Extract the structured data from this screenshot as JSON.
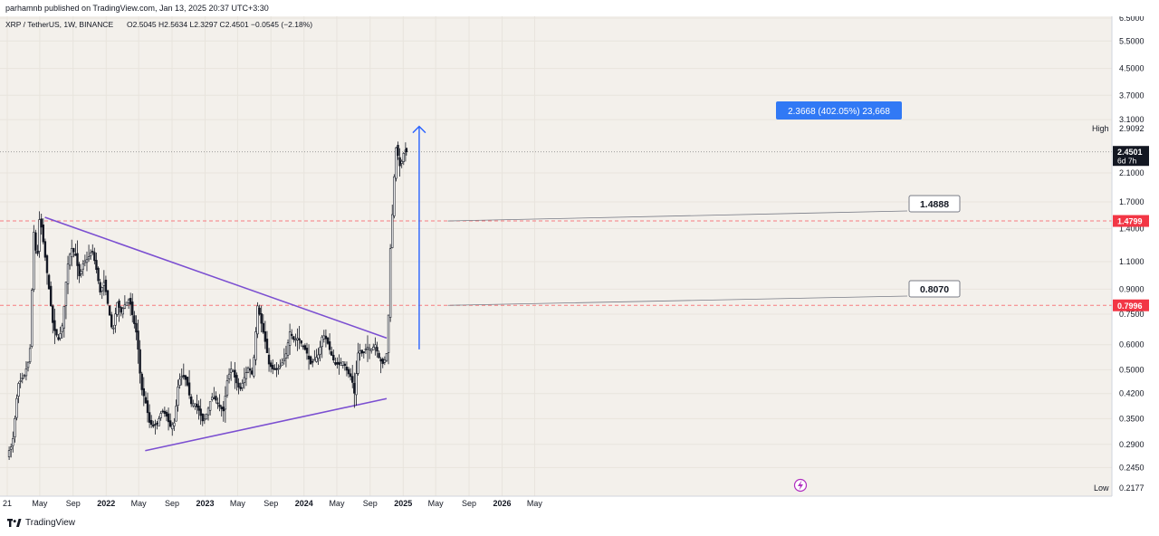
{
  "header": {
    "published": "parhamnb published on TradingView.com, Jan 13, 2025 20:37 UTC+3:30"
  },
  "footer": {
    "brand": "TradingView",
    "logo_icon": "tradingview-logo-icon"
  },
  "colors": {
    "background": "#f3f0eb",
    "grid": "#e8e4dd",
    "candle": "#131722",
    "trendline": "#7b4fd1",
    "support_line": "#f77c80",
    "support_badge": "#f23645",
    "arrow": "#2962ff",
    "measure_box": "#3179f5",
    "price_badge": "#131722"
  },
  "chart_data": {
    "type": "candlestick",
    "title": "XRP / TetherUS, 1W, BINANCE",
    "ohlc_readout": "O2.5045  H2.5634  L2.3297  C2.4501  −0.0545 (−2.18%)",
    "y_scale": "log",
    "ylim": [
      0.2177,
      6.5
    ],
    "y_ticks": [
      6.5,
      5.5,
      4.5,
      3.7,
      3.1,
      2.1,
      1.7,
      1.4,
      1.1,
      0.9,
      0.75,
      0.6,
      0.5,
      0.42,
      0.35,
      0.29,
      0.245
    ],
    "y_tick_labels": [
      "6.5000",
      "5.5000",
      "4.5000",
      "3.7000",
      "3.1000",
      "2.1000",
      "1.7000",
      "1.4000",
      "1.1000",
      "0.9000",
      "0.7500",
      "0.6000",
      "0.5000",
      "0.4200",
      "0.3500",
      "0.2900",
      "0.2450"
    ],
    "x_ticks": [
      {
        "label": "21",
        "date": "2021-01-01"
      },
      {
        "label": "May",
        "date": "2021-05-01"
      },
      {
        "label": "Sep",
        "date": "2021-09-01"
      },
      {
        "label": "2022",
        "date": "2022-01-01"
      },
      {
        "label": "May",
        "date": "2022-05-01"
      },
      {
        "label": "Sep",
        "date": "2022-09-01"
      },
      {
        "label": "2023",
        "date": "2023-01-01"
      },
      {
        "label": "May",
        "date": "2023-05-01"
      },
      {
        "label": "Sep",
        "date": "2023-09-01"
      },
      {
        "label": "2024",
        "date": "2024-01-01"
      },
      {
        "label": "May",
        "date": "2024-05-01"
      },
      {
        "label": "Sep",
        "date": "2024-09-01"
      },
      {
        "label": "2025",
        "date": "2025-01-01"
      },
      {
        "label": "May",
        "date": "2025-05-01"
      },
      {
        "label": "Sep",
        "date": "2025-09-01"
      },
      {
        "label": "2026",
        "date": "2026-01-01"
      },
      {
        "label": "May",
        "date": "2026-05-01"
      }
    ],
    "series": [
      {
        "type": "close-path",
        "points": [
          [
            "2021-01-01",
            0.27
          ],
          [
            "2021-01-20",
            0.29
          ],
          [
            "2021-02-10",
            0.45
          ],
          [
            "2021-03-05",
            0.48
          ],
          [
            "2021-03-25",
            0.55
          ],
          [
            "2021-04-10",
            1.45
          ],
          [
            "2021-04-20",
            1.05
          ],
          [
            "2021-05-01",
            1.55
          ],
          [
            "2021-05-15",
            1.25
          ],
          [
            "2021-06-01",
            0.95
          ],
          [
            "2021-06-20",
            0.68
          ],
          [
            "2021-07-10",
            0.62
          ],
          [
            "2021-07-25",
            0.7
          ],
          [
            "2021-08-10",
            1.05
          ],
          [
            "2021-08-25",
            1.22
          ],
          [
            "2021-09-10",
            1.15
          ],
          [
            "2021-09-25",
            0.98
          ],
          [
            "2021-10-10",
            1.1
          ],
          [
            "2021-10-25",
            1.12
          ],
          [
            "2021-11-10",
            1.2
          ],
          [
            "2021-11-25",
            1.05
          ],
          [
            "2021-12-10",
            0.88
          ],
          [
            "2021-12-25",
            0.95
          ],
          [
            "2022-01-10",
            0.78
          ],
          [
            "2022-01-25",
            0.65
          ],
          [
            "2022-02-10",
            0.82
          ],
          [
            "2022-02-25",
            0.76
          ],
          [
            "2022-03-10",
            0.8
          ],
          [
            "2022-03-28",
            0.84
          ],
          [
            "2022-04-10",
            0.73
          ],
          [
            "2022-04-25",
            0.64
          ],
          [
            "2022-05-10",
            0.44
          ],
          [
            "2022-05-25",
            0.4
          ],
          [
            "2022-06-10",
            0.34
          ],
          [
            "2022-06-25",
            0.33
          ],
          [
            "2022-07-10",
            0.34
          ],
          [
            "2022-07-25",
            0.37
          ],
          [
            "2022-08-10",
            0.36
          ],
          [
            "2022-08-25",
            0.33
          ],
          [
            "2022-09-10",
            0.34
          ],
          [
            "2022-09-25",
            0.46
          ],
          [
            "2022-10-10",
            0.48
          ],
          [
            "2022-10-25",
            0.46
          ],
          [
            "2022-11-10",
            0.39
          ],
          [
            "2022-11-25",
            0.39
          ],
          [
            "2022-12-10",
            0.37
          ],
          [
            "2022-12-25",
            0.34
          ],
          [
            "2023-01-10",
            0.37
          ],
          [
            "2023-01-25",
            0.41
          ],
          [
            "2023-02-10",
            0.4
          ],
          [
            "2023-02-25",
            0.38
          ],
          [
            "2023-03-10",
            0.37
          ],
          [
            "2023-03-25",
            0.47
          ],
          [
            "2023-04-10",
            0.51
          ],
          [
            "2023-04-25",
            0.46
          ],
          [
            "2023-05-10",
            0.43
          ],
          [
            "2023-05-25",
            0.47
          ],
          [
            "2023-06-10",
            0.51
          ],
          [
            "2023-06-25",
            0.48
          ],
          [
            "2023-07-14",
            0.8
          ],
          [
            "2023-07-28",
            0.7
          ],
          [
            "2023-08-10",
            0.62
          ],
          [
            "2023-08-25",
            0.52
          ],
          [
            "2023-09-10",
            0.5
          ],
          [
            "2023-09-25",
            0.5
          ],
          [
            "2023-10-10",
            0.52
          ],
          [
            "2023-10-25",
            0.55
          ],
          [
            "2023-11-10",
            0.66
          ],
          [
            "2023-11-25",
            0.62
          ],
          [
            "2023-12-10",
            0.63
          ],
          [
            "2023-12-25",
            0.6
          ],
          [
            "2024-01-10",
            0.57
          ],
          [
            "2024-01-25",
            0.52
          ],
          [
            "2024-02-10",
            0.54
          ],
          [
            "2024-02-25",
            0.56
          ],
          [
            "2024-03-10",
            0.65
          ],
          [
            "2024-03-25",
            0.62
          ],
          [
            "2024-04-10",
            0.56
          ],
          [
            "2024-04-25",
            0.52
          ],
          [
            "2024-05-10",
            0.52
          ],
          [
            "2024-05-25",
            0.53
          ],
          [
            "2024-06-10",
            0.49
          ],
          [
            "2024-06-25",
            0.47
          ],
          [
            "2024-07-05",
            0.42
          ],
          [
            "2024-07-20",
            0.58
          ],
          [
            "2024-08-05",
            0.56
          ],
          [
            "2024-08-20",
            0.59
          ],
          [
            "2024-09-05",
            0.58
          ],
          [
            "2024-09-20",
            0.6
          ],
          [
            "2024-10-05",
            0.54
          ],
          [
            "2024-10-20",
            0.52
          ],
          [
            "2024-11-05",
            0.58
          ],
          [
            "2024-11-12",
            1.1
          ],
          [
            "2024-11-20",
            1.45
          ],
          [
            "2024-11-27",
            1.9
          ],
          [
            "2024-12-04",
            2.55
          ],
          [
            "2024-12-11",
            2.45
          ],
          [
            "2024-12-18",
            2.2
          ],
          [
            "2024-12-25",
            2.25
          ],
          [
            "2025-01-01",
            2.4
          ],
          [
            "2025-01-08",
            2.5
          ],
          [
            "2025-01-13",
            2.45
          ]
        ]
      }
    ],
    "annotations": {
      "upper_trendline": [
        [
          "2021-05-20",
          1.52
        ],
        [
          "2024-11-01",
          0.63
        ]
      ],
      "lower_trendline": [
        [
          "2022-05-25",
          0.277
        ],
        [
          "2024-11-01",
          0.405
        ]
      ],
      "support_lines": [
        1.4799,
        0.7996
      ],
      "current_price_line": 2.4501,
      "measure_arrow": {
        "date": "2025-03-01",
        "from": 0.58,
        "to": 2.95
      },
      "leader_targets": [
        [
          "2025-06-15",
          1.4799
        ],
        [
          "2025-06-15",
          0.7996
        ]
      ]
    },
    "labels": {
      "measure": "2.3668 (402.05%) 23,668",
      "level_upper": "1.4888",
      "level_lower": "0.8070",
      "support_upper": "1.4799",
      "support_lower": "0.7996",
      "current_price": "2.4501",
      "countdown": "6d 7h",
      "high_label": "High",
      "high_value": "2.9092",
      "low_label": "Low",
      "low_value": "0.2177"
    }
  }
}
